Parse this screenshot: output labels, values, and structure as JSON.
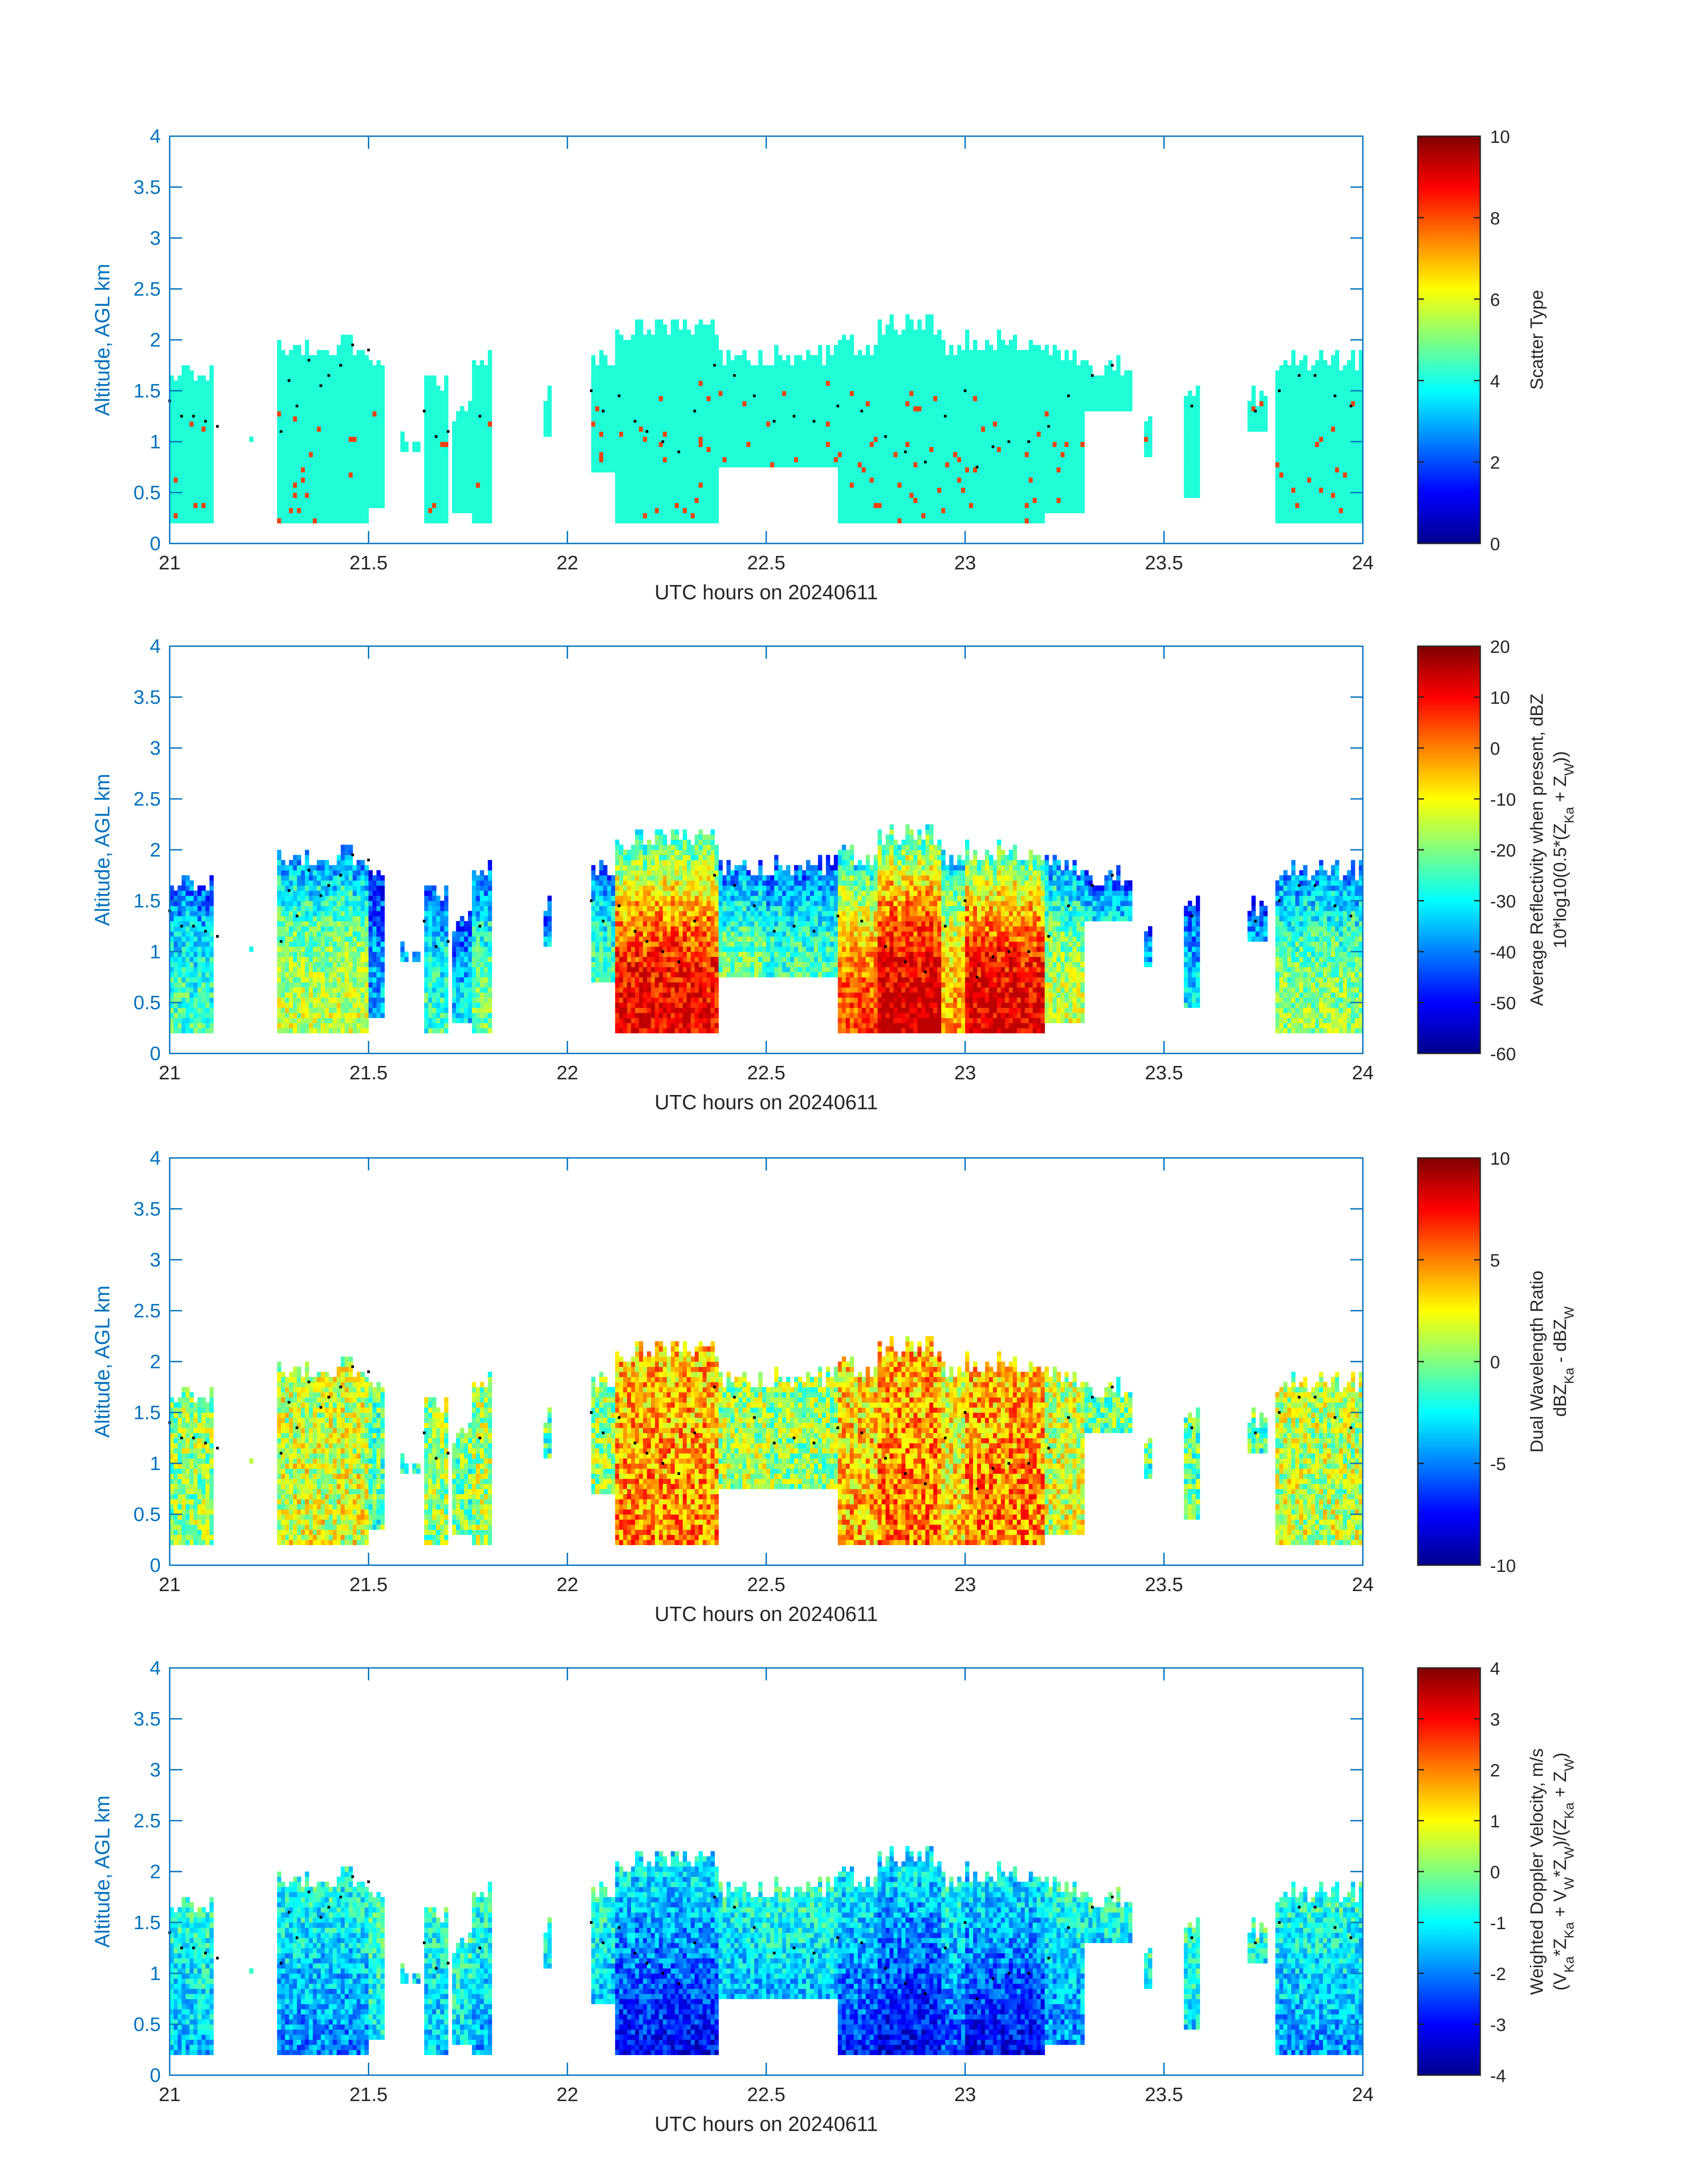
{
  "colormap": [
    "#00008f",
    "#0000ff",
    "#0080ff",
    "#00ffff",
    "#80ff80",
    "#ffff00",
    "#ff8000",
    "#ff0000",
    "#800000"
  ],
  "scatter_type_color": "#1effd8",
  "scatter_alt_color": "#f04010",
  "axis_color": "#0072bd",
  "chart_data": [
    {
      "type": "heatmap",
      "xlabel": "UTC hours on 20240611",
      "ylabel": "Altitude, AGL km",
      "xlim": [
        21,
        24
      ],
      "ylim": [
        0,
        4
      ],
      "xticks": [
        "21",
        "21.5",
        "22",
        "22.5",
        "23",
        "23.5",
        "24"
      ],
      "yticks": [
        "0",
        "0.5",
        "1",
        "1.5",
        "2",
        "2.5",
        "3",
        "3.5",
        "4"
      ],
      "colorbar_label": [
        "Scatter Type"
      ],
      "clim": [
        0,
        10
      ],
      "cticks": [
        "0",
        "2",
        "4",
        "6",
        "8",
        "10"
      ],
      "dominant_value": 4,
      "secondary_value": 8.5
    },
    {
      "type": "heatmap",
      "xlabel": "UTC hours on 20240611",
      "ylabel": "Altitude, AGL km",
      "xlim": [
        21,
        24
      ],
      "ylim": [
        0,
        4
      ],
      "xticks": [
        "21",
        "21.5",
        "22",
        "22.5",
        "23",
        "23.5",
        "24"
      ],
      "yticks": [
        "0",
        "0.5",
        "1",
        "1.5",
        "2",
        "2.5",
        "3",
        "3.5",
        "4"
      ],
      "colorbar_label": [
        "Average Reflectivity when present, dBZ",
        "10*log10(0.5*(Z_Ka + Z_W))"
      ],
      "clim": [
        -60,
        20
      ],
      "cticks": [
        "-60",
        "-50",
        "-40",
        "-30",
        "-20",
        "-10",
        "0",
        "10",
        "20"
      ]
    },
    {
      "type": "heatmap",
      "xlabel": "UTC hours on 20240611",
      "ylabel": "Altitude, AGL km",
      "xlim": [
        21,
        24
      ],
      "ylim": [
        0,
        4
      ],
      "xticks": [
        "21",
        "21.5",
        "22",
        "22.5",
        "23",
        "23.5",
        "24"
      ],
      "yticks": [
        "0",
        "0.5",
        "1",
        "1.5",
        "2",
        "2.5",
        "3",
        "3.5",
        "4"
      ],
      "colorbar_label": [
        "Dual Wavelength Ratio",
        "dBZ_Ka - dBZ_W"
      ],
      "clim": [
        -10,
        10
      ],
      "cticks": [
        "-10",
        "-5",
        "0",
        "5",
        "10"
      ]
    },
    {
      "type": "heatmap",
      "xlabel": "UTC hours on 20240611",
      "ylabel": "Altitude, AGL km",
      "xlim": [
        21,
        24
      ],
      "ylim": [
        0,
        4
      ],
      "xticks": [
        "21",
        "21.5",
        "22",
        "22.5",
        "23",
        "23.5",
        "24"
      ],
      "yticks": [
        "0",
        "0.5",
        "1",
        "1.5",
        "2",
        "2.5",
        "3",
        "3.5",
        "4"
      ],
      "colorbar_label": [
        "Weighted Doppler Velocity, m/s",
        "(V_Ka*Z_Ka + V_W*Z_W)/(Z_Ka + Z_W)"
      ],
      "clim": [
        -4,
        4
      ],
      "cticks": [
        "-4",
        "-3",
        "-2",
        "-1",
        "0",
        "1",
        "2",
        "3",
        "4"
      ]
    }
  ],
  "cloud_segments": [
    {
      "x0": 21.0,
      "x1": 21.11,
      "bottom": 0.2,
      "top": 1.8,
      "intensity": 0.45
    },
    {
      "x0": 21.2,
      "x1": 21.22,
      "bottom": 1.0,
      "top": 1.1,
      "intensity": 0.3
    },
    {
      "x0": 21.27,
      "x1": 21.5,
      "bottom": 0.2,
      "top": 2.05,
      "intensity": 0.6
    },
    {
      "x0": 21.5,
      "x1": 21.54,
      "bottom": 0.35,
      "top": 1.9,
      "intensity": 0.3
    },
    {
      "x0": 21.58,
      "x1": 21.63,
      "bottom": 0.9,
      "top": 1.1,
      "intensity": 0.35
    },
    {
      "x0": 21.64,
      "x1": 21.7,
      "bottom": 0.2,
      "top": 1.65,
      "intensity": 0.45
    },
    {
      "x0": 21.71,
      "x1": 21.76,
      "bottom": 0.3,
      "top": 1.4,
      "intensity": 0.35
    },
    {
      "x0": 21.76,
      "x1": 21.81,
      "bottom": 0.2,
      "top": 1.95,
      "intensity": 0.5
    },
    {
      "x0": 21.94,
      "x1": 21.96,
      "bottom": 1.05,
      "top": 1.55,
      "intensity": 0.3
    },
    {
      "x0": 22.06,
      "x1": 22.12,
      "bottom": 0.7,
      "top": 1.9,
      "intensity": 0.45
    },
    {
      "x0": 22.12,
      "x1": 22.38,
      "bottom": 0.2,
      "top": 2.2,
      "intensity": 0.95
    },
    {
      "x0": 22.38,
      "x1": 22.5,
      "bottom": 0.75,
      "top": 1.9,
      "intensity": 0.5
    },
    {
      "x0": 22.5,
      "x1": 22.68,
      "bottom": 0.75,
      "top": 1.95,
      "intensity": 0.45
    },
    {
      "x0": 22.68,
      "x1": 22.78,
      "bottom": 0.2,
      "top": 2.05,
      "intensity": 0.85
    },
    {
      "x0": 22.78,
      "x1": 22.94,
      "bottom": 0.2,
      "top": 2.25,
      "intensity": 1.0
    },
    {
      "x0": 22.94,
      "x1": 23.0,
      "bottom": 0.2,
      "top": 2.0,
      "intensity": 0.75
    },
    {
      "x0": 23.0,
      "x1": 23.2,
      "bottom": 0.2,
      "top": 2.1,
      "intensity": 0.98
    },
    {
      "x0": 23.2,
      "x1": 23.3,
      "bottom": 0.3,
      "top": 1.95,
      "intensity": 0.6
    },
    {
      "x0": 23.3,
      "x1": 23.42,
      "bottom": 1.3,
      "top": 1.85,
      "intensity": 0.35
    },
    {
      "x0": 23.45,
      "x1": 23.47,
      "bottom": 0.85,
      "top": 1.25,
      "intensity": 0.3
    },
    {
      "x0": 23.55,
      "x1": 23.59,
      "bottom": 0.45,
      "top": 1.65,
      "intensity": 0.35
    },
    {
      "x0": 23.71,
      "x1": 23.76,
      "bottom": 1.1,
      "top": 1.55,
      "intensity": 0.3
    },
    {
      "x0": 23.78,
      "x1": 24.0,
      "bottom": 0.2,
      "top": 1.9,
      "intensity": 0.55
    }
  ],
  "melting_layer_dots": [
    [
      21.0,
      1.4
    ],
    [
      21.03,
      1.25
    ],
    [
      21.06,
      1.25
    ],
    [
      21.09,
      1.2
    ],
    [
      21.12,
      1.15
    ],
    [
      21.28,
      1.1
    ],
    [
      21.3,
      1.6
    ],
    [
      21.32,
      1.35
    ],
    [
      21.35,
      1.8
    ],
    [
      21.38,
      1.55
    ],
    [
      21.4,
      1.65
    ],
    [
      21.43,
      1.75
    ],
    [
      21.46,
      1.95
    ],
    [
      21.5,
      1.9
    ],
    [
      21.64,
      1.3
    ],
    [
      21.67,
      1.05
    ],
    [
      21.7,
      1.1
    ],
    [
      21.78,
      1.25
    ],
    [
      22.06,
      1.5
    ],
    [
      22.09,
      1.3
    ],
    [
      22.13,
      1.45
    ],
    [
      22.17,
      1.2
    ],
    [
      22.2,
      1.1
    ],
    [
      22.24,
      1.0
    ],
    [
      22.28,
      0.9
    ],
    [
      22.32,
      1.3
    ],
    [
      22.37,
      1.75
    ],
    [
      22.42,
      1.65
    ],
    [
      22.47,
      1.45
    ],
    [
      22.52,
      1.2
    ],
    [
      22.57,
      1.25
    ],
    [
      22.62,
      1.2
    ],
    [
      22.68,
      1.35
    ],
    [
      22.74,
      1.3
    ],
    [
      22.8,
      1.05
    ],
    [
      22.85,
      0.9
    ],
    [
      22.9,
      0.8
    ],
    [
      22.95,
      1.25
    ],
    [
      23.0,
      1.5
    ],
    [
      23.03,
      0.75
    ],
    [
      23.07,
      0.95
    ],
    [
      23.11,
      1.0
    ],
    [
      23.16,
      1.0
    ],
    [
      23.21,
      1.15
    ],
    [
      23.26,
      1.45
    ],
    [
      23.32,
      1.65
    ],
    [
      23.37,
      1.75
    ],
    [
      23.57,
      1.35
    ],
    [
      23.73,
      1.3
    ],
    [
      23.79,
      1.5
    ],
    [
      23.84,
      1.65
    ],
    [
      23.88,
      1.65
    ],
    [
      23.93,
      1.45
    ],
    [
      23.97,
      1.35
    ]
  ]
}
